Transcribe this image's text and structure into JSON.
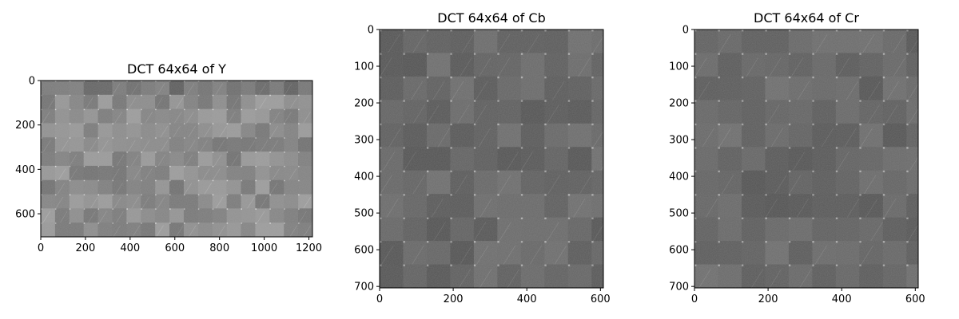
{
  "chart_data": [
    {
      "type": "heatmap",
      "title": "DCT 64x64 of Y",
      "xlabel": "",
      "ylabel": "",
      "xlim": [
        0,
        1216
      ],
      "ylim": [
        0,
        704
      ],
      "y_inverted": true,
      "block_size": 64,
      "xticks": [
        0,
        200,
        400,
        600,
        800,
        1000,
        1200
      ],
      "yticks": [
        0,
        200,
        400,
        600
      ],
      "colormap": "gray",
      "grid": false
    },
    {
      "type": "heatmap",
      "title": "DCT 64x64 of Cb",
      "xlabel": "",
      "ylabel": "",
      "xlim": [
        0,
        608
      ],
      "ylim": [
        0,
        704
      ],
      "y_inverted": true,
      "block_size": 64,
      "xticks": [
        0,
        200,
        400,
        600
      ],
      "yticks": [
        0,
        100,
        200,
        300,
        400,
        500,
        600,
        700
      ],
      "colormap": "gray",
      "grid": false
    },
    {
      "type": "heatmap",
      "title": "DCT 64x64 of Cr",
      "xlabel": "",
      "ylabel": "",
      "xlim": [
        0,
        608
      ],
      "ylim": [
        0,
        704
      ],
      "y_inverted": true,
      "block_size": 64,
      "xticks": [
        0,
        200,
        400,
        600
      ],
      "yticks": [
        0,
        100,
        200,
        300,
        400,
        500,
        600,
        700
      ],
      "colormap": "gray",
      "grid": false
    }
  ]
}
